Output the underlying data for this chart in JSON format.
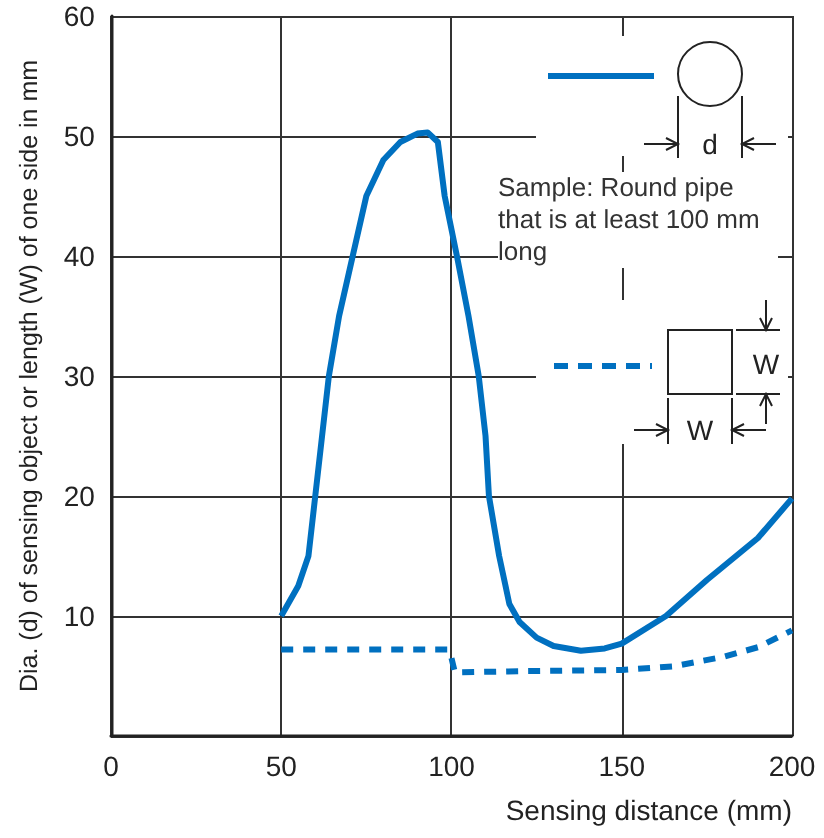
{
  "chart_data": {
    "type": "line",
    "xlabel": "Sensing distance (mm)",
    "ylabel": "Dia. (d) of sensing object or length (W) of one side in mm",
    "annotations": [
      "Sample: Round pipe that is at least 100 mm long",
      "d",
      "W",
      "W"
    ],
    "xlim": [
      0,
      200
    ],
    "xticks": [
      0,
      50,
      100,
      150,
      200
    ],
    "ylim": [
      0,
      60
    ],
    "yticks": [
      {
        "value": 0,
        "label": null
      },
      10,
      20,
      30,
      40,
      50,
      60
    ],
    "grid": true,
    "series": [
      {
        "color": "#0070c0",
        "line_style": "solid",
        "x": [
          50,
          55,
          58,
          60,
          62,
          64,
          67,
          71,
          75,
          80,
          85,
          90,
          93,
          96,
          98,
          101.6,
          105,
          108,
          110,
          111,
          114,
          117,
          120,
          125,
          130,
          138,
          145,
          150,
          163,
          175,
          190,
          200
        ],
        "values": [
          10,
          12.5,
          15,
          20,
          25,
          30,
          35,
          40,
          45,
          48,
          49.5,
          50.2,
          50.3,
          49.5,
          45,
          40,
          35,
          30,
          25,
          20,
          15,
          11,
          9.5,
          8.2,
          7.5,
          7.1,
          7.3,
          7.7,
          10,
          13,
          16.5,
          19.8
        ]
      },
      {
        "color": "#0070c0",
        "line_style": "dashed",
        "x": [
          50,
          99,
          100,
          101,
          120,
          150,
          165,
          180,
          190,
          200
        ],
        "values": [
          7.2,
          7.2,
          6.5,
          5.3,
          5.4,
          5.5,
          5.8,
          6.6,
          7.4,
          8.8
        ]
      }
    ]
  }
}
